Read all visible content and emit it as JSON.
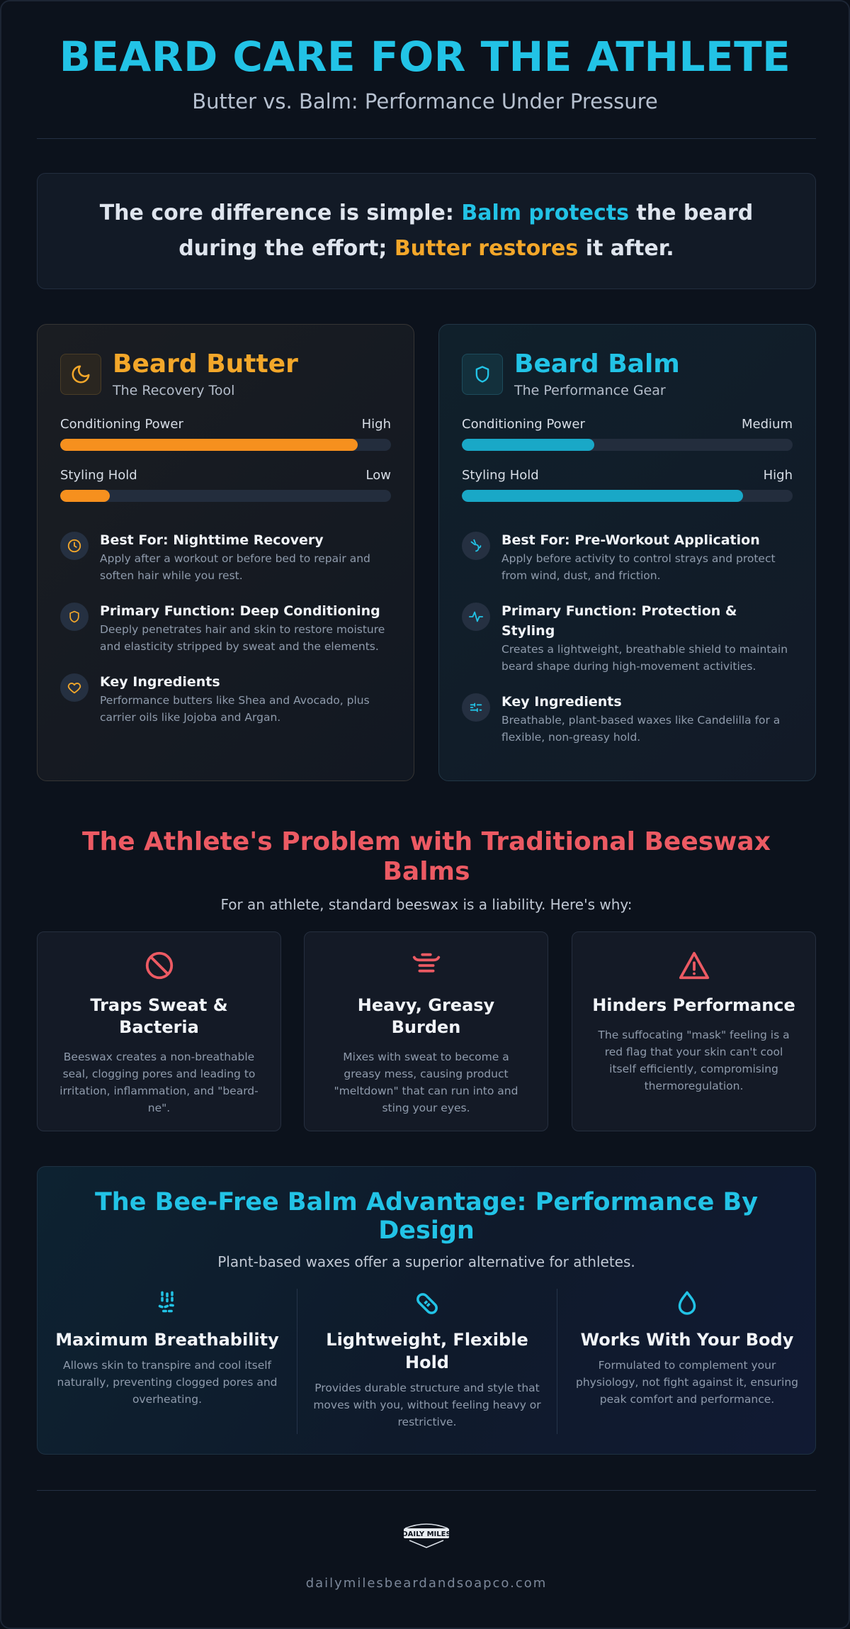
{
  "header": {
    "title": "BEARD CARE FOR THE ATHLETE",
    "subtitle": "Butter vs. Balm: Performance Under Pressure"
  },
  "core": {
    "part1": "The core difference is simple: ",
    "highlight1": "Balm protects",
    "part2": " the beard during the effort; ",
    "highlight2": "Butter restores",
    "part3": " it after."
  },
  "cards": {
    "butter": {
      "title": "Beard Butter",
      "subtitle": "The Recovery Tool",
      "icon": "moon-icon",
      "accent": "#f3a72a",
      "meters": [
        {
          "label": "Conditioning Power",
          "value": "High",
          "level": 0.9
        },
        {
          "label": "Styling Hold",
          "value": "Low",
          "level": 0.15
        }
      ],
      "features": [
        {
          "icon": "clock-icon",
          "title": "Best For: Nighttime Recovery",
          "desc": "Apply after a workout or before bed to repair and soften hair while you rest."
        },
        {
          "icon": "shield-icon",
          "title": "Primary Function: Deep Conditioning",
          "desc": "Deeply penetrates hair and skin to restore moisture and elasticity stripped by sweat and the elements."
        },
        {
          "icon": "heart-icon",
          "title": "Key Ingredients",
          "desc": "Performance butters like Shea and Avocado, plus carrier oils like Jojoba and Argan."
        }
      ]
    },
    "balm": {
      "title": "Beard Balm",
      "subtitle": "The Performance Gear",
      "icon": "shield-icon",
      "accent": "#22c3e6",
      "meters": [
        {
          "label": "Conditioning Power",
          "value": "Medium",
          "level": 0.4
        },
        {
          "label": "Styling Hold",
          "value": "High",
          "level": 0.85
        }
      ],
      "features": [
        {
          "icon": "wind-icon",
          "title": "Best For: Pre-Workout Application",
          "desc": "Apply before activity to control strays and protect from wind, dust, and friction."
        },
        {
          "icon": "pulse-icon",
          "title": "Primary Function: Protection & Styling",
          "desc": "Creates a lightweight, breathable shield to maintain beard shape during high-movement activities."
        },
        {
          "icon": "sliders-icon",
          "title": "Key Ingredients",
          "desc": "Breathable, plant-based waxes like Candelilla for a flexible, non-greasy hold."
        }
      ]
    }
  },
  "problem": {
    "title": "The Athlete's Problem with Traditional Beeswax Balms",
    "subtitle": "For an athlete, standard beeswax is a liability. Here's why:",
    "items": [
      {
        "icon": "ban-icon",
        "title": "Traps Sweat & Bacteria",
        "desc": "Beeswax creates a non-breathable seal, clogging pores and leading to irritation, inflammation, and \"beard-ne\"."
      },
      {
        "icon": "weight-icon",
        "title": "Heavy, Greasy Burden",
        "desc": "Mixes with sweat to become a greasy mess, causing product \"meltdown\" that can run into and sting your eyes."
      },
      {
        "icon": "warning-icon",
        "title": "Hinders Performance",
        "desc": "The suffocating \"mask\" feeling is a red flag that your skin can't cool itself efficiently, compromising thermoregulation."
      }
    ]
  },
  "advantage": {
    "title": "The Bee-Free Balm Advantage: Performance By Design",
    "subtitle": "Plant-based waxes offer a superior alternative for athletes.",
    "items": [
      {
        "icon": "breath-icon",
        "title": "Maximum Breathability",
        "desc": "Allows skin to transpire and cool itself naturally, preventing clogged pores and overheating."
      },
      {
        "icon": "bandage-icon",
        "title": "Lightweight, Flexible Hold",
        "desc": "Provides durable structure and style that moves with you, without feeling heavy or restrictive."
      },
      {
        "icon": "droplet-icon",
        "title": "Works With Your Body",
        "desc": "Formulated to complement your physiology, not fight against it, ensuring peak comfort and performance."
      }
    ]
  },
  "footer": {
    "logo_text": "DAILY MILES",
    "website": "dailymilesbeardandsoapco.com"
  }
}
